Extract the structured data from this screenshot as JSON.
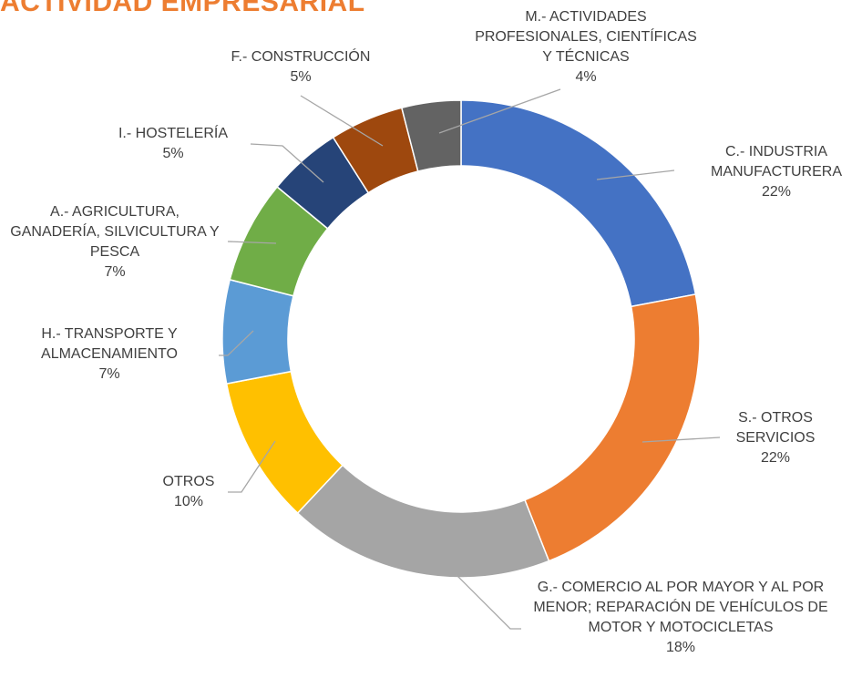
{
  "chart_data": {
    "type": "donut",
    "title": "ACTIVIDAD EMPRESARIAL",
    "categories": [
      "C.- INDUSTRIA MANUFACTURERA",
      "S.- OTROS SERVICIOS",
      "G.- COMERCIO AL POR MAYOR Y AL POR MENOR; REPARACIÓN DE VEHÍCULOS DE MOTOR Y MOTOCICLETAS",
      "OTROS",
      "H.- TRANSPORTE Y ALMACENAMIENTO",
      "A.- AGRICULTURA, GANADERÍA, SILVICULTURA Y PESCA",
      "I.- HOSTELERÍA",
      "F.- CONSTRUCCIÓN",
      "M.- ACTIVIDADES PROFESIONALES, CIENTÍFICAS Y TÉCNICAS"
    ],
    "values": [
      22,
      22,
      18,
      10,
      7,
      7,
      5,
      5,
      4
    ],
    "value_labels": [
      "22%",
      "22%",
      "18%",
      "10%",
      "7%",
      "7%",
      "5%",
      "5%",
      "4%"
    ],
    "colors": [
      "#4472c4",
      "#ed7d31",
      "#a5a5a5",
      "#ffc000",
      "#5b9bd5",
      "#70ad47",
      "#264478",
      "#9e480e",
      "#636363"
    ]
  }
}
